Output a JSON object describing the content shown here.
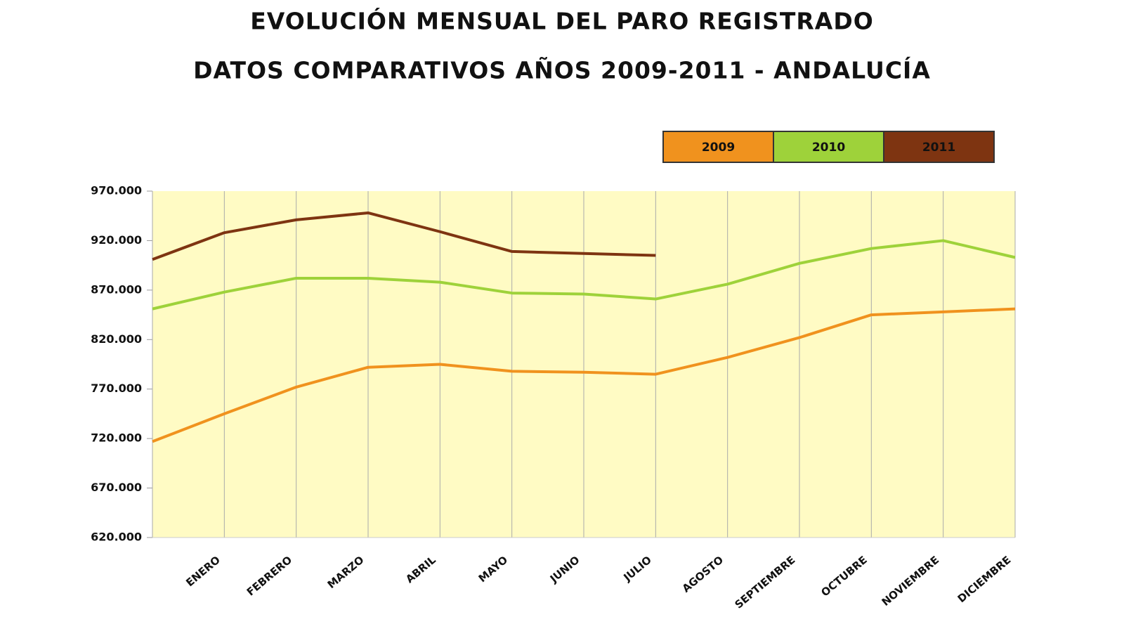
{
  "chart_data": {
    "type": "line",
    "title": "EVOLUCIÓN MENSUAL DEL PARO REGISTRADO",
    "subtitle": "DATOS COMPARATIVOS AÑOS 2009-2011 - ANDALUCÍA",
    "categories": [
      null,
      "ENERO",
      "FEBRERO",
      "MARZO",
      "ABRIL",
      "MAYO",
      "JUNIO",
      "JULIO",
      "AGOSTO",
      "SEPTIEMBRE",
      "OCTUBRE",
      "NOVIEMBRE",
      "DICIEMBRE"
    ],
    "series": [
      {
        "name": "2009",
        "color": "#f0921e",
        "values": [
          717000,
          745000,
          772000,
          792000,
          795000,
          788000,
          787000,
          785000,
          802000,
          822000,
          845000,
          848000,
          851000
        ]
      },
      {
        "name": "2010",
        "color": "#9ed23a",
        "values": [
          851000,
          868000,
          882000,
          882000,
          878000,
          867000,
          866000,
          861000,
          876000,
          897000,
          912000,
          920000,
          903000
        ]
      },
      {
        "name": "2011",
        "color": "#7e3411",
        "values": [
          901000,
          928000,
          941000,
          948000,
          929000,
          909000,
          907000,
          905000,
          null,
          null,
          null,
          null,
          null
        ]
      }
    ],
    "ylim": [
      620000,
      970000
    ],
    "yticks": [
      {
        "value": 620000,
        "label": "620.000"
      },
      {
        "value": 670000,
        "label": "670.000"
      },
      {
        "value": 720000,
        "label": "720.000"
      },
      {
        "value": 770000,
        "label": "770.000"
      },
      {
        "value": 820000,
        "label": "820.000"
      },
      {
        "value": 870000,
        "label": "870.000"
      },
      {
        "value": 920000,
        "label": "920.000"
      },
      {
        "value": 970000,
        "label": "970.000"
      }
    ],
    "grid": true,
    "legend": "top-right"
  }
}
